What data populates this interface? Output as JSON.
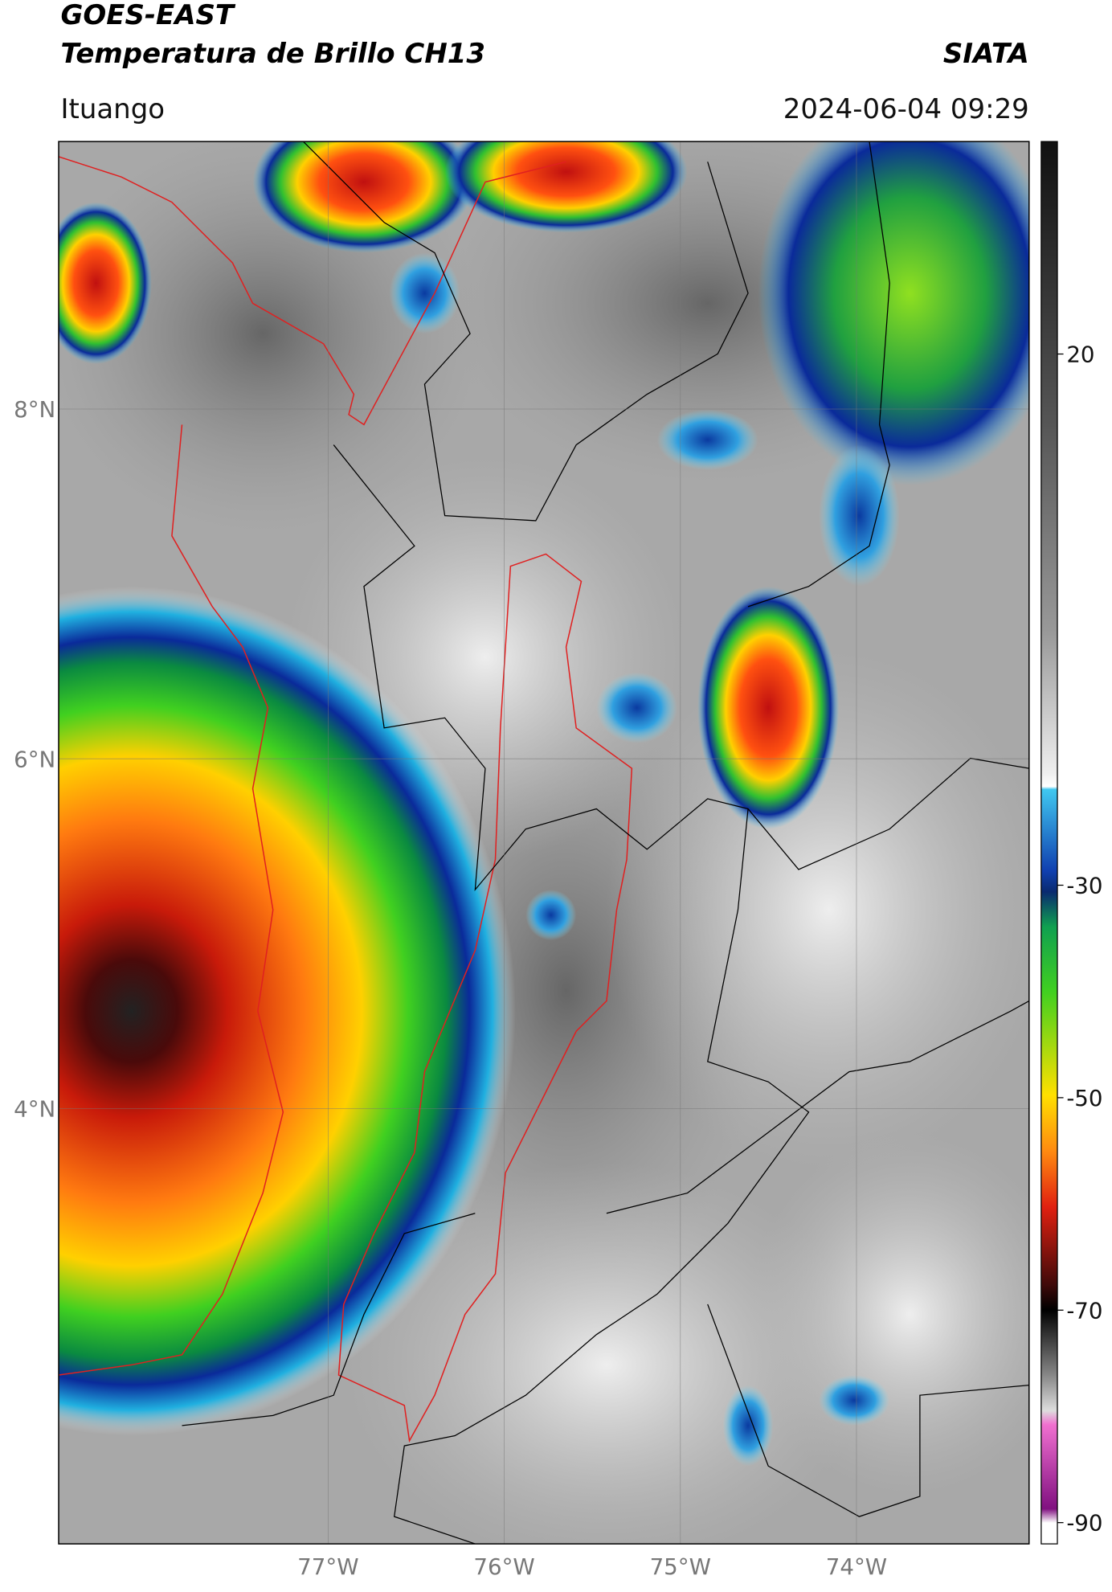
{
  "header": {
    "title": "GOES-EAST",
    "subtitle": "Temperatura de Brillo CH13",
    "source": "SIATA",
    "region": "Ituango",
    "datetime": "2024-06-04 09:29"
  },
  "map": {
    "lonlim": [
      -78.53,
      -73.02
    ],
    "latlim": [
      1.51,
      9.53
    ],
    "grid": true,
    "lat_ticks": [
      {
        "value": 8,
        "label": "8°N"
      },
      {
        "value": 6,
        "label": "6°N"
      },
      {
        "value": 4,
        "label": "4°N"
      }
    ],
    "lon_ticks": [
      {
        "value": -77,
        "label": "77°W"
      },
      {
        "value": -76,
        "label": "76°W"
      },
      {
        "value": -75,
        "label": "75°W"
      },
      {
        "value": -74,
        "label": "74°W"
      }
    ]
  },
  "colorbar": {
    "lim": [
      -92,
      40
    ],
    "ticks": [
      20,
      -30,
      -50,
      -70,
      -90
    ]
  }
}
